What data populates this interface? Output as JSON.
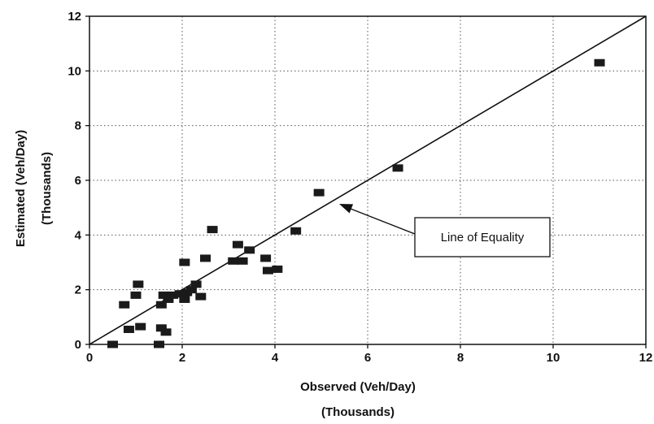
{
  "chart_data": {
    "type": "scatter",
    "title": "",
    "xlabel": "Observed (Veh/Day)",
    "xlabel_unit": "(Thousands)",
    "ylabel": "Estimated (Veh/Day)",
    "ylabel_unit": "(Thousands)",
    "xlim": [
      0,
      12
    ],
    "ylim": [
      0,
      12
    ],
    "x_ticks": [
      "0",
      "2",
      "4",
      "6",
      "8",
      "10",
      "12"
    ],
    "y_ticks": [
      "0",
      "2",
      "4",
      "6",
      "8",
      "10",
      "12"
    ],
    "grid": "dotted",
    "reference_line": {
      "label": "Line of Equality",
      "from": [
        0,
        0
      ],
      "to": [
        12,
        12
      ]
    },
    "series": [
      {
        "points": [
          [
            0.5,
            0.0
          ],
          [
            0.75,
            1.45
          ],
          [
            0.85,
            0.55
          ],
          [
            1.0,
            1.8
          ],
          [
            1.05,
            2.2
          ],
          [
            1.1,
            0.65
          ],
          [
            1.5,
            0.0
          ],
          [
            1.55,
            0.6
          ],
          [
            1.55,
            1.45
          ],
          [
            1.6,
            1.8
          ],
          [
            1.65,
            0.45
          ],
          [
            1.7,
            1.65
          ],
          [
            1.8,
            1.8
          ],
          [
            1.95,
            1.85
          ],
          [
            2.05,
            3.0
          ],
          [
            2.05,
            1.65
          ],
          [
            2.1,
            1.9
          ],
          [
            2.2,
            2.0
          ],
          [
            2.3,
            2.2
          ],
          [
            2.4,
            1.75
          ],
          [
            2.5,
            3.15
          ],
          [
            2.65,
            4.2
          ],
          [
            3.1,
            3.05
          ],
          [
            3.2,
            3.65
          ],
          [
            3.3,
            3.05
          ],
          [
            3.45,
            3.45
          ],
          [
            3.8,
            3.15
          ],
          [
            3.85,
            2.7
          ],
          [
            4.05,
            2.75
          ],
          [
            4.45,
            4.15
          ],
          [
            4.95,
            5.55
          ],
          [
            6.65,
            6.45
          ],
          [
            11.0,
            10.3
          ]
        ]
      }
    ]
  }
}
